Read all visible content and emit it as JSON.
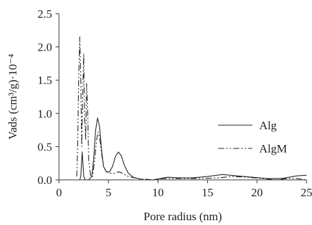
{
  "chart_data": {
    "type": "line",
    "xlabel": "Pore radius (nm)",
    "ylabel": "Vads (cm³/g)·10⁻⁴",
    "xlim": [
      0,
      25
    ],
    "ylim": [
      0,
      2.5
    ],
    "x_ticks": [
      "0",
      "5",
      "10",
      "15",
      "20",
      "25"
    ],
    "y_ticks": [
      "0.0",
      "0.5",
      "1.0",
      "1.5",
      "2.0",
      "2.5"
    ],
    "grid": false,
    "legend_position": "right",
    "series": [
      {
        "name": "Alg",
        "style": "solid",
        "color": "#222222",
        "points": [
          [
            2.1,
            0.0
          ],
          [
            2.2,
            0.05
          ],
          [
            2.35,
            0.42
          ],
          [
            2.5,
            0.05
          ],
          [
            2.65,
            0.0
          ],
          [
            3.0,
            0.0
          ],
          [
            3.3,
            0.05
          ],
          [
            3.5,
            0.3
          ],
          [
            3.7,
            0.75
          ],
          [
            3.9,
            0.93
          ],
          [
            4.1,
            0.8
          ],
          [
            4.3,
            0.45
          ],
          [
            4.5,
            0.2
          ],
          [
            4.8,
            0.12
          ],
          [
            5.1,
            0.12
          ],
          [
            5.4,
            0.2
          ],
          [
            5.7,
            0.35
          ],
          [
            6.0,
            0.42
          ],
          [
            6.3,
            0.36
          ],
          [
            6.6,
            0.22
          ],
          [
            7.0,
            0.1
          ],
          [
            7.5,
            0.04
          ],
          [
            8.5,
            0.0
          ],
          [
            9.5,
            0.0
          ],
          [
            10.2,
            0.02
          ],
          [
            11.0,
            0.04
          ],
          [
            12.0,
            0.03
          ],
          [
            13.5,
            0.03
          ],
          [
            15.0,
            0.05
          ],
          [
            16.5,
            0.08
          ],
          [
            18.0,
            0.06
          ],
          [
            19.5,
            0.04
          ],
          [
            21.0,
            0.02
          ],
          [
            22.5,
            0.02
          ],
          [
            24.0,
            0.06
          ],
          [
            25.0,
            0.07
          ]
        ]
      },
      {
        "name": "AlgM",
        "style": "dash-dot-dot",
        "color": "#222222",
        "points": [
          [
            1.8,
            0.05
          ],
          [
            1.9,
            0.6
          ],
          [
            2.0,
            1.6
          ],
          [
            2.1,
            2.15
          ],
          [
            2.2,
            1.5
          ],
          [
            2.3,
            0.5
          ],
          [
            2.4,
            1.3
          ],
          [
            2.5,
            1.9
          ],
          [
            2.6,
            0.9
          ],
          [
            2.7,
            0.6
          ],
          [
            2.8,
            1.45
          ],
          [
            2.9,
            1.0
          ],
          [
            3.0,
            0.3
          ],
          [
            3.2,
            0.05
          ],
          [
            3.4,
            0.05
          ],
          [
            3.6,
            0.3
          ],
          [
            3.8,
            0.6
          ],
          [
            3.95,
            0.72
          ],
          [
            4.1,
            0.65
          ],
          [
            4.3,
            0.4
          ],
          [
            4.5,
            0.2
          ],
          [
            4.8,
            0.12
          ],
          [
            5.2,
            0.1
          ],
          [
            5.6,
            0.1
          ],
          [
            6.0,
            0.12
          ],
          [
            6.4,
            0.1
          ],
          [
            7.0,
            0.05
          ],
          [
            8.0,
            0.02
          ],
          [
            9.5,
            0.0
          ],
          [
            10.5,
            0.02
          ],
          [
            12.0,
            0.02
          ],
          [
            14.0,
            0.02
          ],
          [
            16.0,
            0.03
          ],
          [
            17.5,
            0.05
          ],
          [
            19.0,
            0.04
          ],
          [
            20.5,
            0.02
          ],
          [
            22.0,
            0.0
          ],
          [
            23.0,
            0.02
          ],
          [
            24.0,
            0.02
          ],
          [
            25.0,
            0.0
          ]
        ]
      }
    ]
  }
}
